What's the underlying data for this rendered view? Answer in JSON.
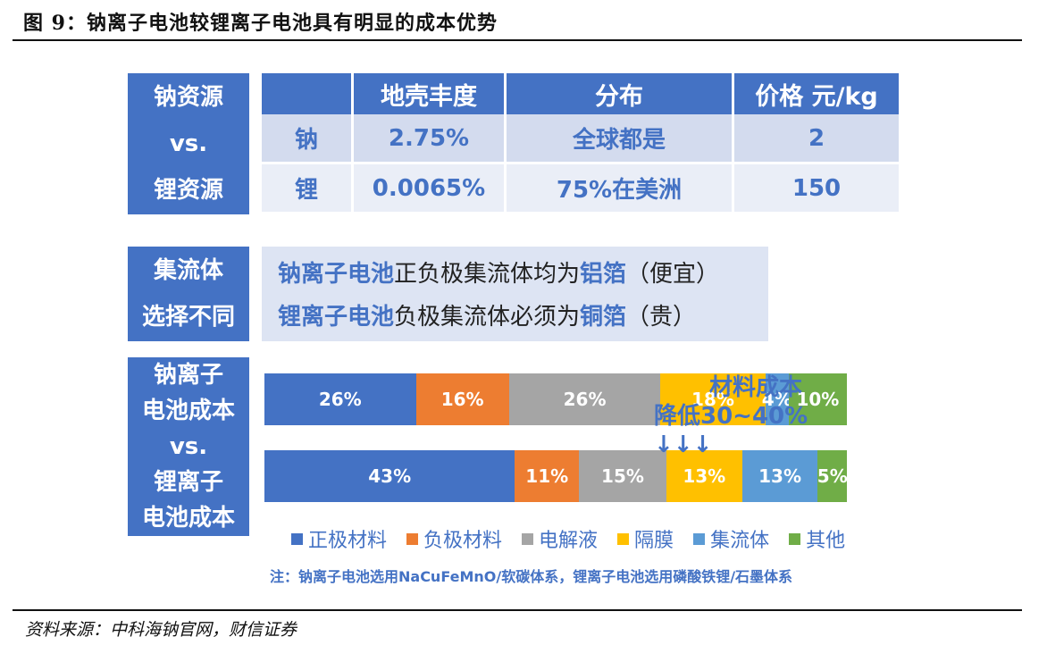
{
  "figure_title": "图 9：钠离子电池较锂离子电池具有明显的成本优势",
  "source": "资料来源：中科海钠官网，财信证券",
  "resource_panel": {
    "side_label": [
      "钠资源",
      "vs.",
      "锂资源"
    ],
    "headers": [
      "",
      "地壳丰度",
      "分布",
      "价格 元/kg"
    ],
    "rows": [
      [
        "钠",
        "2.75%",
        "全球都是",
        "2"
      ],
      [
        "锂",
        "0.0065%",
        "75%在美洲",
        "150"
      ]
    ]
  },
  "collector_panel": {
    "side_label": [
      "集流体",
      "选择不同"
    ],
    "line1": {
      "lead": "钠离子电池",
      "mid": "正负极集流体均为",
      "key": "铝箔",
      "tail": "（便宜）"
    },
    "line2": {
      "lead": "锂离子电池",
      "mid": "负极集流体必须为",
      "key": "铜箔",
      "tail": "（贵）"
    }
  },
  "cost_panel": {
    "side_label": [
      "钠离子",
      "电池成本",
      "vs.",
      "锂离子",
      "电池成本"
    ],
    "note_line1": "材料成本",
    "note_line2": "降低30~40% ↓↓↓",
    "footnote": "注：钠离子电池选用NaCuFeMnO/软碳体系，锂离子电池选用磷酸铁锂/石墨体系"
  },
  "chart_data": {
    "type": "bar",
    "orientation": "horizontal-stacked",
    "categories": [
      "钠离子电池",
      "锂离子电池"
    ],
    "series": [
      {
        "name": "正极材料",
        "color": "#4472c4",
        "values": [
          26,
          43
        ],
        "labels": [
          "26%",
          "43%"
        ]
      },
      {
        "name": "负极材料",
        "color": "#ed7d31",
        "values": [
          16,
          11
        ],
        "labels": [
          "16%",
          "11%"
        ]
      },
      {
        "name": "电解液",
        "color": "#a5a5a5",
        "values": [
          26,
          15
        ],
        "labels": [
          "26%",
          "15%"
        ]
      },
      {
        "name": "隔膜",
        "color": "#ffc000",
        "values": [
          18,
          13
        ],
        "labels": [
          "18%",
          "13%"
        ]
      },
      {
        "name": "集流体",
        "color": "#5b9bd5",
        "values": [
          4,
          13
        ],
        "labels": [
          "4%",
          "13%"
        ]
      },
      {
        "name": "其他",
        "color": "#70ad47",
        "values": [
          10,
          5
        ],
        "labels": [
          "10%",
          "5%"
        ]
      }
    ],
    "legend_position": "bottom"
  }
}
